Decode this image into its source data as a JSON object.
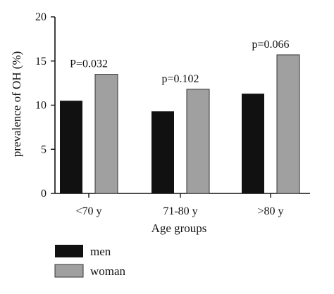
{
  "chart_data": {
    "type": "bar",
    "categories": [
      "<70 y",
      "71-80 y",
      ">80 y"
    ],
    "series": [
      {
        "name": "men",
        "values": [
          10.5,
          9.3,
          11.3
        ],
        "color": "#111111"
      },
      {
        "name": "woman",
        "values": [
          13.5,
          11.8,
          15.7
        ],
        "color": "#a0a0a0"
      }
    ],
    "annotations": [
      "P=0.032",
      "p=0.102",
      "p=0.066"
    ],
    "xlabel": "Age groups",
    "ylabel": "prevalence of OH (%)",
    "ylim": [
      0,
      20
    ],
    "yticks": [
      0,
      5,
      10,
      15,
      20
    ],
    "grid": false,
    "legend_position": "bottom-left"
  }
}
